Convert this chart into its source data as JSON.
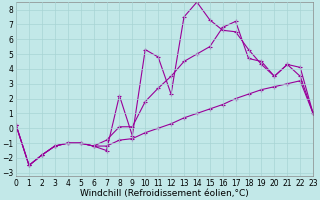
{
  "xlabel": "Windchill (Refroidissement éolien,°C)",
  "ylabel": "",
  "bg_color": "#c2e8e8",
  "grid_color": "#a8d4d4",
  "line_color": "#990099",
  "xlim": [
    0,
    23
  ],
  "ylim": [
    -3.2,
    8.5
  ],
  "xticks": [
    0,
    1,
    2,
    3,
    4,
    5,
    6,
    7,
    8,
    9,
    10,
    11,
    12,
    13,
    14,
    15,
    16,
    17,
    18,
    19,
    20,
    21,
    22,
    23
  ],
  "yticks": [
    -3,
    -2,
    -1,
    0,
    1,
    2,
    3,
    4,
    5,
    6,
    7,
    8
  ],
  "lines": [
    {
      "x": [
        0,
        1,
        2,
        3,
        4,
        5,
        6,
        7,
        8,
        9,
        10,
        11,
        12,
        13,
        14,
        15,
        16,
        17,
        18,
        19,
        20,
        21,
        22,
        23
      ],
      "y": [
        0.2,
        -2.5,
        -1.8,
        -1.2,
        -1.0,
        -1.0,
        -1.2,
        -1.5,
        2.2,
        -0.5,
        5.3,
        4.8,
        2.3,
        7.5,
        8.5,
        7.3,
        6.6,
        6.5,
        5.3,
        4.3,
        3.5,
        4.3,
        4.1,
        1.0
      ],
      "has_markers": true
    },
    {
      "x": [
        0,
        1,
        2,
        3,
        4,
        5,
        6,
        7,
        8,
        9,
        10,
        11,
        12,
        13,
        14,
        15,
        16,
        17,
        18,
        19,
        20,
        21,
        22,
        23
      ],
      "y": [
        0.2,
        -2.5,
        -1.8,
        -1.2,
        -1.0,
        -1.0,
        -1.2,
        -0.8,
        0.1,
        0.1,
        1.8,
        2.7,
        3.5,
        4.5,
        5.0,
        5.5,
        6.8,
        7.2,
        4.7,
        4.5,
        3.5,
        4.3,
        3.5,
        1.0
      ],
      "has_markers": true
    },
    {
      "x": [
        0,
        1,
        2,
        3,
        4,
        5,
        6,
        7,
        8,
        9,
        10,
        11,
        12,
        13,
        14,
        15,
        16,
        17,
        18,
        19,
        20,
        21,
        22,
        23
      ],
      "y": [
        0.2,
        -2.5,
        -1.8,
        -1.2,
        -1.0,
        -1.0,
        -1.2,
        -1.2,
        -0.8,
        -0.7,
        -0.3,
        0.0,
        0.3,
        0.7,
        1.0,
        1.3,
        1.6,
        2.0,
        2.3,
        2.6,
        2.8,
        3.0,
        3.2,
        1.0
      ],
      "has_markers": true
    }
  ],
  "tick_fontsize": 5.5,
  "label_fontsize": 6.5
}
